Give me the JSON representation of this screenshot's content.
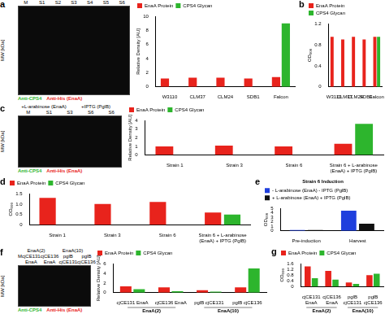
{
  "chart_data": [
    {
      "type": "bar",
      "categories": [
        "W3110",
        "CLM37",
        "CLM24",
        "SDB1",
        "Falcon"
      ],
      "series": [
        {
          "name": "EnaA Protein",
          "color": "#e8231c",
          "values": [
            1.2,
            1.3,
            1.3,
            1.2,
            1.4
          ]
        },
        {
          "name": "CPS4 Glycan",
          "color": "#2db52d",
          "values": [
            0,
            0,
            0,
            0,
            9.0
          ]
        }
      ],
      "y_label": "Relative Density [AU]",
      "ylim": [
        0,
        10
      ],
      "yticks": [
        0,
        2,
        4,
        6,
        8,
        10
      ],
      "legend": "top left",
      "grid": false
    },
    {
      "type": "bar",
      "panel": "b",
      "categories": [
        "W3110",
        "CLM37",
        "CLM24",
        "SDB1",
        "Falcon"
      ],
      "series": [
        {
          "name": "EnaA Protein",
          "color": "#e8231c",
          "values": [
            0.95,
            0.9,
            0.95,
            0.9,
            0.95
          ]
        },
        {
          "name": "CPS4 Glycan",
          "color": "#2db52d",
          "values": [
            0,
            0,
            0,
            0,
            0.95
          ]
        }
      ],
      "y_label": "OD₆₀₀",
      "ylim": [
        0,
        1.2
      ],
      "yticks": [
        0,
        0.4,
        0.8,
        1.2
      ],
      "legend": "top left",
      "grid": false
    },
    {
      "type": "bar",
      "categories": [
        "Strain 1",
        "Strain 3",
        "Strain 6",
        "Strain 6 + L-arabinose (EnaA) + IPTG (PglB)"
      ],
      "series": [
        {
          "name": "EnaA Protein",
          "color": "#e8231c",
          "values": [
            1.0,
            1.1,
            1.0,
            1.3
          ]
        },
        {
          "name": "CPS4 Glycan",
          "color": "#2db52d",
          "values": [
            0,
            0,
            0,
            3.6
          ]
        }
      ],
      "y_label": "Relative Density [AU]",
      "ylim": [
        0,
        4
      ],
      "yticks": [
        0,
        1,
        2,
        3,
        4
      ],
      "legend": "top left",
      "grid": false
    },
    {
      "type": "bar",
      "panel": "d",
      "categories": [
        "Strain 1",
        "Strain 3",
        "Strain 6",
        "Strain 6 + L-arabinose (EnaA) + IPTG (PglB)"
      ],
      "series": [
        {
          "name": "EnaA Protein",
          "color": "#e8231c",
          "values": [
            1.3,
            1.0,
            1.1,
            0.6
          ]
        },
        {
          "name": "CPS4 Glycan",
          "color": "#2db52d",
          "values": [
            0,
            0,
            0,
            0.5
          ]
        }
      ],
      "y_label": "OD₆₀₀",
      "ylim": [
        0,
        1.5
      ],
      "yticks": [
        0,
        0.5,
        1,
        1.5
      ],
      "legend": "top left",
      "grid": false
    },
    {
      "type": "bar",
      "panel": "e",
      "title": "Strain 6 Induction",
      "categories": [
        "Pre-induction",
        "Harvest"
      ],
      "series": [
        {
          "name": "- L-arabinose (EnaA) - IPTG (PglB)",
          "color": "#1f3fdd",
          "values": [
            0.2,
            4.5
          ]
        },
        {
          "name": "+ L-arabinose (EnaA) + IPTG (PglB)",
          "color": "#111111",
          "values": [
            0.2,
            1.6
          ]
        }
      ],
      "y_label": "OD₆₀₀",
      "ylim": [
        0,
        5
      ],
      "yticks": [
        0,
        1,
        2,
        3,
        4,
        5
      ],
      "legend": "top left",
      "grid": false
    },
    {
      "type": "bar",
      "categories": [
        "cjCE131 EnaA",
        "cjCE136 EnaA",
        "pglB cjCE131",
        "pglB cjCE136"
      ],
      "group_labels": [
        "EnaA(2)",
        "EnaA(2)",
        "EnaA(10)",
        "EnaA(10)"
      ],
      "series": [
        {
          "name": "EnaA Protein",
          "color": "#e8231c",
          "values": [
            1.3,
            1.1,
            0.5,
            1.1
          ]
        },
        {
          "name": "CPS4 Glycan",
          "color": "#2db52d",
          "values": [
            0.7,
            0.3,
            0.2,
            5.0
          ]
        }
      ],
      "y_label": "Relative Density [AU]",
      "ylim": [
        0,
        6
      ],
      "yticks": [
        0,
        2,
        4,
        6
      ],
      "legend": "top left",
      "grid": false
    },
    {
      "type": "bar",
      "panel": "g",
      "categories": [
        "cjCE131 EnaA",
        "cjCE136 EnaA",
        "pglB cjCE131",
        "pglB cjCE136"
      ],
      "group_labels": [
        "EnaA(2)",
        "EnaA(2)",
        "EnaA(10)",
        "EnaA(10)"
      ],
      "series": [
        {
          "name": "EnaA Protein",
          "color": "#e8231c",
          "values": [
            1.4,
            1.1,
            0.3,
            0.8
          ]
        },
        {
          "name": "CPS4 Glycan",
          "color": "#2db52d",
          "values": [
            0.6,
            0.5,
            0.2,
            0.9
          ]
        }
      ],
      "y_label": "OD₆₀₀",
      "ylim": [
        0,
        1.6
      ],
      "yticks": [
        0,
        0.4,
        0.8,
        1.2,
        1.6
      ],
      "legend": "top left",
      "grid": false
    }
  ],
  "gels": [
    {
      "panel": "a",
      "lanes": [
        "M",
        "S1",
        "S2",
        "S3",
        "S4",
        "S5",
        "S6"
      ],
      "y_label": "MW [kDa]",
      "legend": [
        {
          "name": "Anti-CPS4",
          "color": "#2db52d"
        },
        {
          "name": "Anti-His (EnaA)",
          "color": "#e8231c"
        }
      ]
    },
    {
      "panel": "c",
      "headers": [
        "+L-arabinose (EnaA)",
        "+IPTG (PglB)"
      ],
      "lanes": [
        "M",
        "S1",
        "S3",
        "S6",
        "S6"
      ],
      "y_label": "MW [kDa]",
      "legend": [
        {
          "name": "Anti-CPS4",
          "color": "#2db52d"
        },
        {
          "name": "Anti-His (EnaA)",
          "color": "#e8231c"
        }
      ]
    },
    {
      "panel": "f",
      "headers": [
        "EnaA(2)",
        "EnaA(10)"
      ],
      "lanes": [
        "M",
        "cjCE131 EnaA",
        "cjCE136 EnaA",
        "pglB cjCE131",
        "pglB cjCE136"
      ],
      "y_label": "MW [kDa]",
      "legend": [
        {
          "name": "Anti-CPS4",
          "color": "#2db52d"
        },
        {
          "name": "Anti-His (EnaA)",
          "color": "#e8231c"
        }
      ]
    }
  ]
}
